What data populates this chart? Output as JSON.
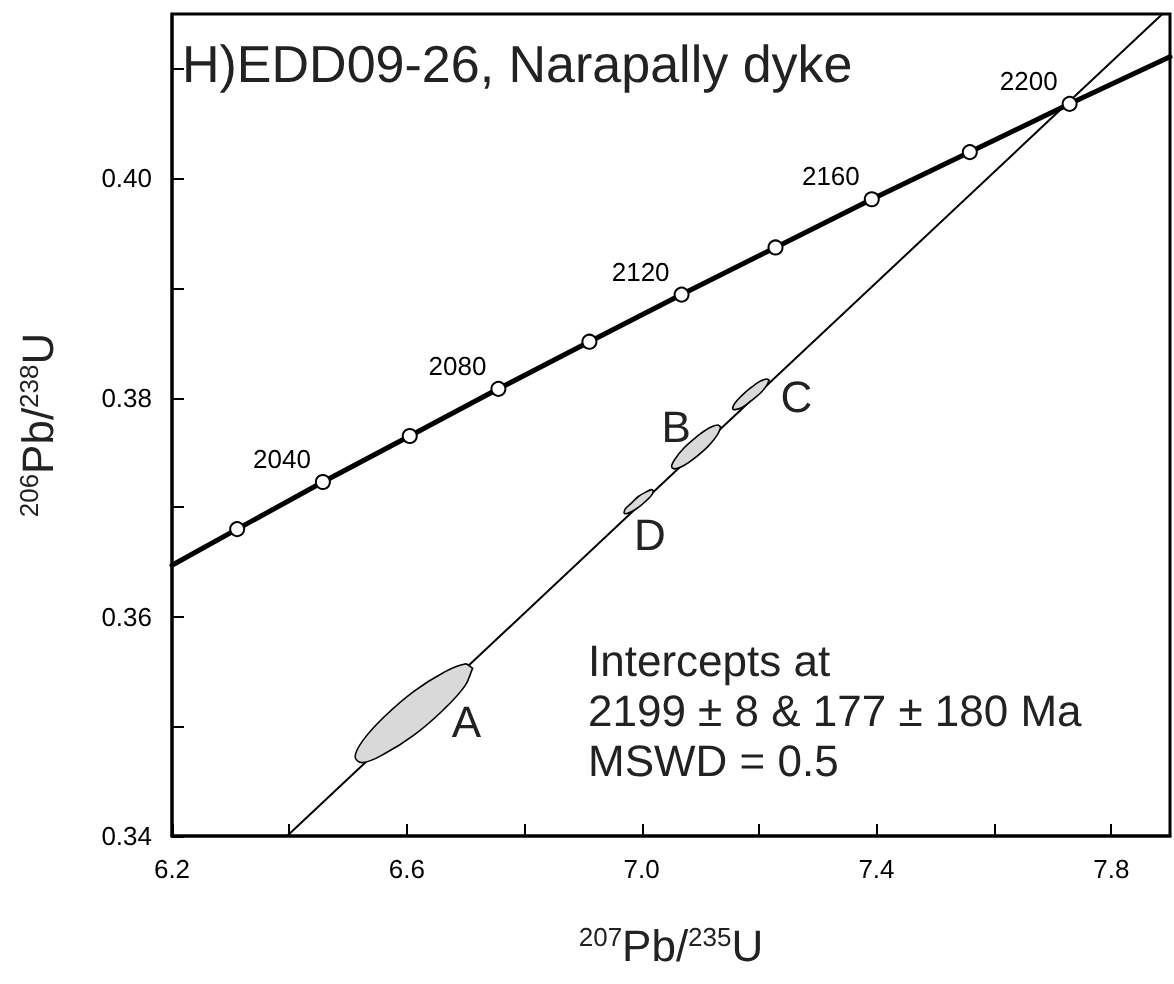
{
  "chart_data": {
    "type": "line",
    "title": "H)EDD09-26, Narapally dyke",
    "xlabel": "$^{207}$Pb/$^{235}$U",
    "ylabel": "$^{206}$Pb/$^{238}$U",
    "annotations": [
      "Intercepts at\n2199 ± 8 & 177 ± 180 Ma\nMSWD = 0.5",
      {
        "text": "2040",
        "x": 6.457,
        "y": 0.3723
      },
      {
        "text": "2080",
        "x": 6.756,
        "y": 0.3808
      },
      {
        "text": "2120",
        "x": 7.068,
        "y": 0.3894
      },
      {
        "text": "2160",
        "x": 7.392,
        "y": 0.3981
      },
      {
        "text": "2200",
        "x": 7.729,
        "y": 0.4068
      }
    ],
    "xlim": [
      6.2,
      7.9
    ],
    "ylim": [
      0.34,
      0.415
    ],
    "xticks": [
      6.2,
      {
        "value": 6.4,
        "label": null
      },
      6.6,
      {
        "value": 6.8,
        "label": null
      },
      {
        "value": 7.0,
        "label": "7.0"
      },
      {
        "value": 7.2,
        "label": null
      },
      7.4,
      {
        "value": 7.6,
        "label": null
      },
      7.8
    ],
    "yticks": [
      0.34,
      {
        "value": 0.35,
        "label": null
      },
      0.36,
      {
        "value": 0.37,
        "label": null
      },
      0.38,
      {
        "value": 0.39,
        "label": null
      },
      {
        "value": 0.4,
        "label": "0.40"
      },
      {
        "value": 0.41,
        "label": null
      }
    ],
    "grid": false,
    "legend": false,
    "series": [
      {
        "color": "#000000",
        "marker": "none",
        "x": [
          6.2,
          6.311,
          6.457,
          6.605,
          6.756,
          6.911,
          7.068,
          7.228,
          7.392,
          7.559,
          7.729,
          7.9
        ],
        "values": [
          0.3647,
          0.368,
          0.3723,
          0.3765,
          0.3808,
          0.3851,
          0.3894,
          0.3937,
          0.3981,
          0.4024,
          0.4068,
          0.4111
        ]
      },
      {
        "type": "scatter",
        "color": "#000000",
        "marker": "circle",
        "x": [
          6.311,
          6.457,
          6.605,
          6.756,
          6.911,
          7.068,
          7.228,
          7.392,
          7.559,
          7.729
        ],
        "values": [
          0.368,
          0.3723,
          0.3765,
          0.3808,
          0.3851,
          0.3894,
          0.3937,
          0.3981,
          0.4024,
          0.4068
        ]
      },
      {
        "color": "#000000",
        "marker": "none",
        "x": [
          6.396,
          7.887
        ],
        "values": [
          0.34,
          0.415
        ]
      },
      {
        "type": "area",
        "name": "A",
        "color": "#d9d9d9",
        "x": [
          6.712,
          6.699,
          6.662,
          6.612,
          6.562,
          6.525,
          6.512,
          6.525,
          6.562,
          6.612,
          6.662,
          6.699,
          6.712
        ],
        "values": [
          0.3553,
          0.3557,
          0.3549,
          0.3532,
          0.3509,
          0.3487,
          0.3472,
          0.3467,
          0.3475,
          0.3492,
          0.3515,
          0.3537,
          0.3553
        ]
      },
      {
        "type": "area",
        "name": "B",
        "color": "#d9d9d9",
        "x": [
          7.135,
          7.129,
          7.114,
          7.093,
          7.072,
          7.057,
          7.051,
          7.057,
          7.072,
          7.093,
          7.114,
          7.129,
          7.135
        ],
        "values": [
          0.3773,
          0.3775,
          0.3772,
          0.3764,
          0.3754,
          0.3744,
          0.3737,
          0.3735,
          0.3738,
          0.3746,
          0.3756,
          0.3766,
          0.3773
        ]
      },
      {
        "type": "area",
        "name": "C",
        "color": "#d9d9d9",
        "x": [
          7.217,
          7.213,
          7.202,
          7.186,
          7.171,
          7.159,
          7.155,
          7.159,
          7.171,
          7.186,
          7.202,
          7.213,
          7.217
        ],
        "values": [
          0.3816,
          0.3817,
          0.3815,
          0.3809,
          0.3802,
          0.3795,
          0.379,
          0.3789,
          0.3791,
          0.3797,
          0.3804,
          0.3811,
          0.3816
        ]
      },
      {
        "type": "area",
        "name": "D",
        "color": "#d9d9d9",
        "x": [
          7.02,
          7.017,
          7.008,
          6.995,
          6.983,
          6.973,
          6.97,
          6.973,
          6.983,
          6.995,
          7.008,
          7.017,
          7.02
        ],
        "values": [
          0.3715,
          0.3716,
          0.3714,
          0.371,
          0.3704,
          0.3699,
          0.3695,
          0.3694,
          0.3696,
          0.37,
          0.3706,
          0.3711,
          0.3715
        ]
      }
    ]
  }
}
